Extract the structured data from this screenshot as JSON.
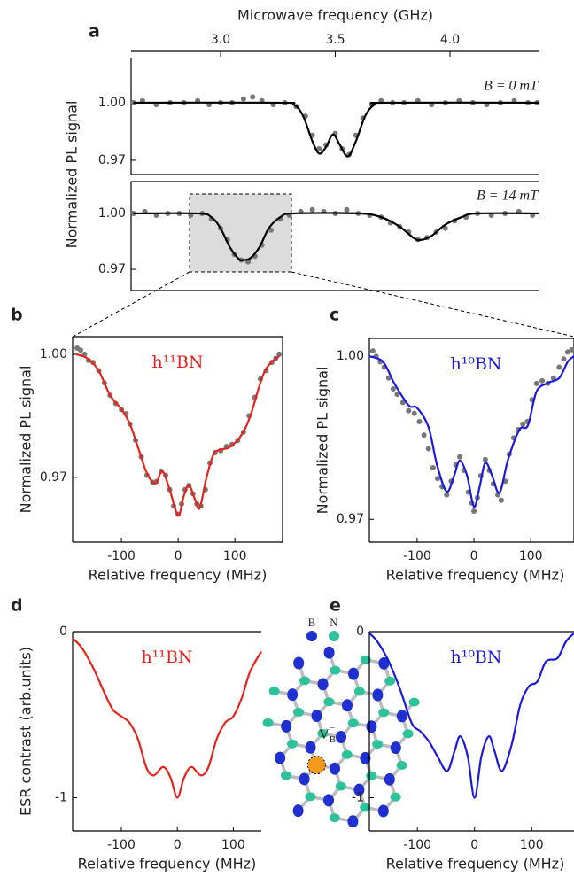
{
  "chart_data": [
    {
      "type": "line",
      "panel": "a",
      "xlabel": "Microwave frequency (GHz)",
      "ylabel": "Normalized PL signal",
      "xlim": [
        2.61,
        4.39
      ],
      "xticks": [
        {
          "value": 3,
          "label": "3.0"
        },
        {
          "value": 3.5,
          "label": "3.5"
        },
        {
          "value": 4,
          "label": "4.0"
        }
      ],
      "subplots": [
        {
          "annotation": "B = 0 mT",
          "ylim": [
            0.9626,
            1.0235
          ],
          "yticks": [
            {
              "value": 1,
              "label": "1.00"
            },
            0.97
          ],
          "scatter": {
            "color": "#777777",
            "x": [
              2.62,
              2.66,
              2.72,
              2.78,
              2.84,
              2.9,
              2.95,
              3.0,
              3.05,
              3.1,
              3.14,
              3.18,
              3.23,
              3.28,
              3.33,
              3.37,
              3.4,
              3.43,
              3.46,
              3.5,
              3.53,
              3.56,
              3.59,
              3.62,
              3.66,
              3.7,
              3.75,
              3.8,
              3.86,
              3.92,
              3.98,
              4.04,
              4.1,
              4.16,
              4.22,
              4.28,
              4.34,
              4.38
            ],
            "values": [
              1.0,
              1.001,
              0.999,
              1.0,
              1.0,
              1.001,
              0.999,
              1.0,
              1.0,
              1.002,
              1.003,
              1.001,
              0.999,
              1.0,
              0.998,
              0.993,
              0.983,
              0.976,
              0.978,
              0.984,
              0.976,
              0.973,
              0.983,
              0.992,
              0.999,
              1.001,
              1.0,
              1.0,
              1.001,
              0.999,
              1.0,
              1.001,
              1.0,
              0.999,
              1.0,
              1.001,
              1.0,
              1.0
            ]
          },
          "fit": {
            "color": "#000000",
            "x": [
              2.62,
              3.25,
              3.32,
              3.36,
              3.4,
              3.43,
              3.46,
              3.49,
              3.52,
              3.555,
              3.59,
              3.63,
              3.67,
              3.72,
              4.39
            ],
            "values": [
              1.0,
              1.0,
              0.999,
              0.993,
              0.98,
              0.9735,
              0.977,
              0.9835,
              0.978,
              0.972,
              0.98,
              0.993,
              0.999,
              1.0,
              1.0
            ]
          }
        },
        {
          "annotation": "B = 14 mT",
          "ylim": [
            0.9586,
            1.0171
          ],
          "yticks": [
            {
              "value": 1,
              "label": "1.00"
            },
            0.97
          ],
          "scatter": {
            "color": "#777777",
            "x": [
              2.62,
              2.67,
              2.72,
              2.77,
              2.82,
              2.87,
              2.92,
              2.96,
              3.0,
              3.03,
              3.06,
              3.09,
              3.12,
              3.15,
              3.18,
              3.22,
              3.26,
              3.3,
              3.35,
              3.4,
              3.45,
              3.5,
              3.55,
              3.6,
              3.65,
              3.7,
              3.74,
              3.78,
              3.82,
              3.86,
              3.9,
              3.94,
              3.98,
              4.02,
              4.07,
              4.12,
              4.18,
              4.24,
              4.3,
              4.36
            ],
            "values": [
              1.0,
              1.001,
              0.999,
              1.0,
              1.0,
              0.999,
              1.0,
              0.997,
              0.992,
              0.986,
              0.978,
              0.975,
              0.974,
              0.977,
              0.983,
              0.991,
              0.997,
              0.999,
              1.001,
              1.002,
              1.001,
              1.0,
              1.002,
              1.0,
              0.999,
              0.998,
              0.995,
              0.993,
              0.99,
              0.986,
              0.987,
              0.99,
              0.992,
              0.996,
              0.998,
              1.0,
              0.999,
              1.0,
              1.001,
              0.999
            ]
          },
          "fit": {
            "color": "#000000",
            "x": [
              2.62,
              2.9,
              2.96,
              3.0,
              3.04,
              3.08,
              3.1,
              3.13,
              3.17,
              3.21,
              3.26,
              3.32,
              3.6,
              3.7,
              3.78,
              3.84,
              3.87,
              3.92,
              3.98,
              4.05,
              4.12,
              4.39
            ],
            "values": [
              1.0,
              1.0,
              0.998,
              0.992,
              0.982,
              0.9755,
              0.975,
              0.976,
              0.982,
              0.992,
              0.998,
              1.0,
              1.0,
              0.998,
              0.993,
              0.987,
              0.9857,
              0.988,
              0.994,
              0.998,
              1.0,
              1.0
            ]
          }
        }
      ]
    },
    {
      "type": "line",
      "panel": "b",
      "label": "h¹¹BN",
      "label_color": "#e8221c",
      "xlabel": "Relative frequency (MHz)",
      "ylabel": "Normalized PL signal",
      "xlim": [
        -186,
        184
      ],
      "xticks": [
        -100,
        0,
        100
      ],
      "ylim": [
        0.9542,
        1.0043
      ],
      "yticks": [
        {
          "value": 1,
          "label": "1.00"
        },
        0.97
      ],
      "scatter": {
        "color": "#777777",
        "x": [
          -178,
          -172,
          -165,
          -158,
          -150,
          -140,
          -130,
          -120,
          -110,
          -100,
          -92,
          -85,
          -75,
          -65,
          -55,
          -45,
          -38,
          -30,
          -22,
          -15,
          -8,
          0,
          6,
          12,
          19,
          26,
          33,
          40,
          48,
          56,
          65,
          75,
          85,
          95,
          105,
          115,
          125,
          135,
          145,
          155,
          165,
          172,
          178
        ],
        "values": [
          1.0015,
          1.001,
          1.0,
          0.9985,
          0.998,
          0.996,
          0.993,
          0.99,
          0.988,
          0.9865,
          0.9855,
          0.983,
          0.979,
          0.975,
          0.9705,
          0.9688,
          0.969,
          0.9715,
          0.9705,
          0.967,
          0.963,
          0.961,
          0.9635,
          0.967,
          0.968,
          0.966,
          0.9635,
          0.963,
          0.967,
          0.9735,
          0.976,
          0.9765,
          0.9775,
          0.978,
          0.979,
          0.981,
          0.985,
          0.9895,
          0.994,
          0.996,
          0.998,
          0.999,
          1.0
        ]
      },
      "fit": {
        "color": "#e8221c",
        "x": [
          -180,
          -160,
          -140,
          -120,
          -100,
          -85,
          -70,
          -55,
          -40,
          -28,
          -15,
          0,
          10,
          19,
          30,
          38,
          50,
          62,
          73,
          90,
          110,
          127,
          152,
          178
        ],
        "values": [
          1.0,
          0.999,
          0.996,
          0.99,
          0.9866,
          0.983,
          0.977,
          0.971,
          0.9685,
          0.9715,
          0.967,
          0.9607,
          0.9655,
          0.9681,
          0.9645,
          0.9625,
          0.97,
          0.9755,
          0.9767,
          0.9773,
          0.98,
          0.9849,
          0.9957,
          0.9996
        ]
      }
    },
    {
      "type": "line",
      "panel": "c",
      "label": "h¹⁰BN",
      "label_color": "#1a1adf",
      "xlabel": "Relative frequency (MHz)",
      "ylabel": "Normalized PL signal",
      "xlim": [
        -184,
        176
      ],
      "xticks": [
        -100,
        0,
        100
      ],
      "ylim": [
        0.9658,
        1.0033
      ],
      "yticks": [
        {
          "value": 1,
          "label": "1.00"
        },
        0.97
      ],
      "scatter": {
        "color": "#777777",
        "x": [
          -178,
          -172,
          -165,
          -158,
          -150,
          -142,
          -135,
          -125,
          -115,
          -105,
          -96,
          -88,
          -80,
          -72,
          -64,
          -56,
          -48,
          -40,
          -32,
          -25,
          -18,
          -10,
          -4,
          0,
          6,
          12,
          20,
          27,
          34,
          42,
          48,
          55,
          62,
          70,
          78,
          86,
          94,
          102,
          110,
          120,
          130,
          140,
          150,
          158,
          165,
          172
        ],
        "values": [
          1.001,
          1.0,
          0.999,
          0.998,
          0.996,
          0.994,
          0.993,
          0.9915,
          0.99,
          0.9895,
          0.988,
          0.9855,
          0.983,
          0.9795,
          0.9775,
          0.976,
          0.9745,
          0.977,
          0.98,
          0.9815,
          0.979,
          0.975,
          0.973,
          0.9715,
          0.974,
          0.978,
          0.981,
          0.979,
          0.9765,
          0.9745,
          0.9735,
          0.977,
          0.982,
          0.985,
          0.9865,
          0.9875,
          0.988,
          0.992,
          0.995,
          0.9955,
          0.995,
          0.996,
          0.998,
          0.9995,
          1.0008,
          1.0012
        ]
      },
      "fit": {
        "color": "#1a1adf",
        "x": [
          -184,
          -160,
          -140,
          -115,
          -100,
          -80,
          -65,
          -48,
          -35,
          -25,
          -12,
          0,
          10,
          20,
          32,
          45,
          60,
          80,
          95,
          110,
          130,
          150,
          165,
          176
        ],
        "values": [
          1.0,
          0.999,
          0.995,
          0.991,
          0.9905,
          0.987,
          0.98,
          0.9751,
          0.978,
          0.9808,
          0.978,
          0.9723,
          0.976,
          0.9804,
          0.978,
          0.9749,
          0.981,
          0.9865,
          0.9873,
          0.9935,
          0.9951,
          0.996,
          0.999,
          1.0
        ]
      }
    },
    {
      "type": "line",
      "panel": "d",
      "label": "h¹¹BN",
      "label_color": "#e8221c",
      "xlabel": "Relative frequency (MHz)",
      "ylabel": "ESR contrast  (arb.units)",
      "xlim": [
        -187,
        150
      ],
      "xticks": [
        -100,
        0,
        100
      ],
      "ylim": [
        -1.2,
        0
      ],
      "yticks": [
        0,
        -1
      ],
      "fit": {
        "color": "#e8221c",
        "x": [
          -187,
          -170,
          -150,
          -130,
          -115,
          -100,
          -85,
          -70,
          -55,
          -42,
          -25,
          -12,
          0,
          12,
          25,
          42,
          55,
          70,
          85,
          100,
          115,
          130,
          150
        ],
        "values": [
          -0.04,
          -0.1,
          -0.22,
          -0.37,
          -0.47,
          -0.51,
          -0.55,
          -0.65,
          -0.82,
          -0.866,
          -0.815,
          -0.88,
          -1.0,
          -0.88,
          -0.815,
          -0.866,
          -0.82,
          -0.65,
          -0.55,
          -0.51,
          -0.4,
          -0.24,
          -0.12
        ]
      }
    },
    {
      "type": "line",
      "panel": "e",
      "label": "h¹⁰BN",
      "label_color": "#1a1adf",
      "xlabel": "Relative frequency (MHz)",
      "xlim": [
        -184,
        174
      ],
      "xticks": [
        -100,
        0,
        100
      ],
      "ylim": [
        -1.2,
        0
      ],
      "yticks": [
        0,
        -1
      ],
      "fit": {
        "color": "#1a1adf",
        "x": [
          -184,
          -170,
          -150,
          -130,
          -110,
          -95,
          -80,
          -65,
          -48,
          -35,
          -25,
          -12,
          0,
          12,
          25,
          35,
          48,
          65,
          80,
          95,
          110,
          125,
          145,
          160,
          174
        ],
        "values": [
          -0.01,
          -0.06,
          -0.18,
          -0.35,
          -0.55,
          -0.6,
          -0.66,
          -0.75,
          -0.84,
          -0.72,
          -0.63,
          -0.75,
          -1.0,
          -0.75,
          -0.63,
          -0.72,
          -0.84,
          -0.68,
          -0.44,
          -0.33,
          -0.3,
          -0.18,
          -0.16,
          -0.06,
          -0.01
        ]
      }
    }
  ],
  "lattice": {
    "legend": [
      "B",
      "N"
    ],
    "vacancy": "V",
    "vacancy_sub": "B",
    "vacancy_sup": "−"
  }
}
